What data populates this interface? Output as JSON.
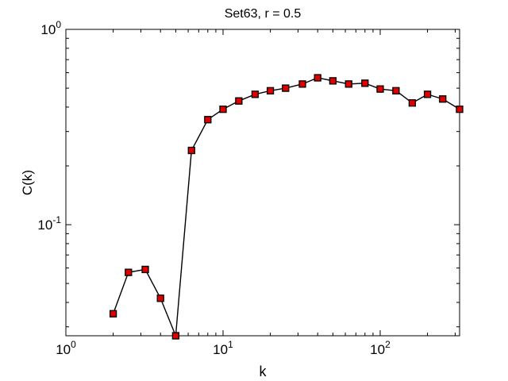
{
  "chart_data": {
    "type": "line",
    "title": "Set63, r = 0.5",
    "xlabel": "k",
    "ylabel": "C(k)",
    "xscale": "log",
    "yscale": "log",
    "xlim": [
      1,
      320
    ],
    "ylim": [
      0.027,
      1
    ],
    "grid": false,
    "legend": "none",
    "x_ticks": [
      {
        "value": 1,
        "base": "10",
        "exp": "0"
      },
      {
        "value": 10,
        "base": "10",
        "exp": "1"
      },
      {
        "value": 100,
        "base": "10",
        "exp": "2"
      }
    ],
    "y_ticks": [
      {
        "value": 0.1,
        "base": "10",
        "exp": "-1"
      },
      {
        "value": 1,
        "base": "10",
        "exp": "0"
      }
    ],
    "marker_color": "#dd0000",
    "line_color": "#000000",
    "series": [
      {
        "x": [
          2,
          2.5,
          3.2,
          4,
          5,
          6.3,
          8,
          10,
          12.6,
          16,
          20,
          25,
          32,
          40,
          50,
          63,
          80,
          100,
          126,
          160,
          200,
          250,
          320
        ],
        "y": [
          0.035,
          0.057,
          0.059,
          0.042,
          0.027,
          0.24,
          0.345,
          0.39,
          0.43,
          0.465,
          0.485,
          0.5,
          0.525,
          0.565,
          0.545,
          0.525,
          0.53,
          0.495,
          0.485,
          0.42,
          0.465,
          0.44,
          0.39
        ]
      }
    ]
  }
}
